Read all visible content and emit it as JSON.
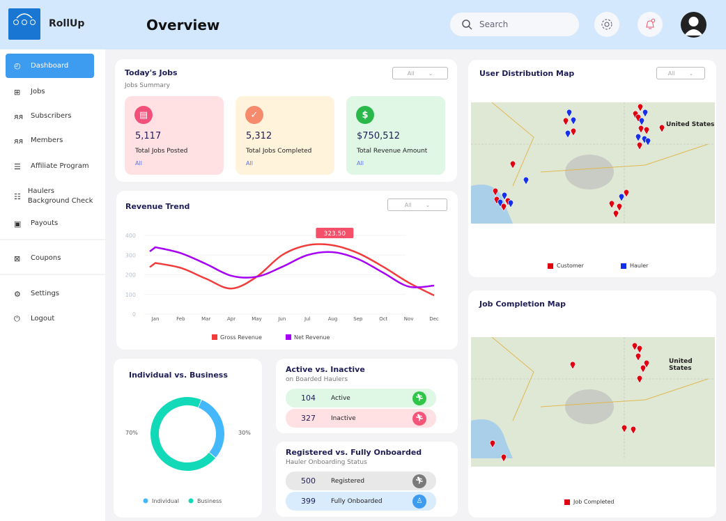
{
  "app": {
    "brand": "RollUp",
    "logo_text": "RollUp",
    "page_title": "Overview"
  },
  "header": {
    "search_placeholder": "Search",
    "icons": [
      "search-icon",
      "gear-icon",
      "bell-icon",
      "avatar-icon"
    ]
  },
  "sidebar": {
    "items": [
      {
        "label": "Dashboard",
        "icon": "gauge-icon",
        "active": true
      },
      {
        "label": "Jobs",
        "icon": "grid-icon"
      },
      {
        "label": "Subscribers",
        "icon": "users-icon"
      },
      {
        "label": "Members",
        "icon": "users-icon"
      },
      {
        "label": "Affiliate Program",
        "icon": "list-box-icon"
      },
      {
        "label": "Haulers Background Check",
        "icon": "checklist-icon"
      },
      {
        "label": "Payouts",
        "icon": "cash-icon"
      },
      {
        "label": "Coupons",
        "icon": "coupon-icon"
      },
      {
        "label": "Settings",
        "icon": "gear-icon"
      },
      {
        "label": "Logout",
        "icon": "power-icon"
      }
    ]
  },
  "todays_jobs": {
    "title": "Today's Jobs",
    "subtitle": "Jobs Summary",
    "filter": "All",
    "stats": [
      {
        "value": "5,117",
        "label": "Total Jobs Posted",
        "link": "All",
        "color": "#f0507a",
        "bg": "#ffe1e4"
      },
      {
        "value": "5,312",
        "label": "Total Jobs Completed",
        "link": "All",
        "color": "#f58a6c",
        "bg": "#fff3dc"
      },
      {
        "value": "$750,512",
        "label": "Total Revenue Amount",
        "link": "All",
        "color": "#2bb84a",
        "bg": "#dff7e4"
      }
    ]
  },
  "revenue": {
    "title": "Revenue Trend",
    "filter": "All"
  },
  "chart_data": [
    {
      "type": "line",
      "title": "Revenue Trend",
      "categories": [
        "Jan",
        "Feb",
        "Mar",
        "Apr",
        "May",
        "Jun",
        "Jul",
        "Aug",
        "Sep",
        "Oct",
        "Nov",
        "Dec"
      ],
      "yticks": [
        "0",
        "100",
        "200",
        "300",
        "400"
      ],
      "ylim": [
        0,
        400
      ],
      "grid": true,
      "legend": "bottom",
      "tooltip": "323.50",
      "series": [
        {
          "name": "Gross Revenue",
          "color": "#f23c3c",
          "values": [
            260,
            235,
            180,
            130,
            190,
            300,
            350,
            350,
            310,
            240,
            160,
            95
          ]
        },
        {
          "name": "Net Revenue",
          "color": "#a500f5",
          "values": [
            340,
            310,
            255,
            195,
            190,
            240,
            300,
            315,
            280,
            210,
            140,
            145
          ]
        }
      ]
    },
    {
      "type": "pie",
      "title": "Individual vs. Business",
      "legend": "bottom",
      "series": [
        {
          "name": "Individual",
          "value": 30,
          "label": "30%",
          "color": "#44b8fb"
        },
        {
          "name": "Business",
          "value": 70,
          "label": "70%",
          "color": "#12dab8"
        }
      ]
    }
  ],
  "active": {
    "title": "Active vs. Inactive",
    "subtitle": "on Boarded Haulers",
    "rows": [
      {
        "value": "104",
        "label": "Active",
        "bg": "#dff8e6",
        "icon_color": "#2fc548"
      },
      {
        "value": "327",
        "label": "Inactive",
        "bg": "#ffe1e4",
        "icon_color": "#f5547a"
      }
    ]
  },
  "registered": {
    "title": "Registered vs. Fully Onboarded",
    "subtitle": "Hauler Onboarding Status",
    "rows": [
      {
        "value": "500",
        "label": "Registered",
        "bg": "#e8e8e8",
        "icon_color": "#7a7a7a"
      },
      {
        "value": "399",
        "label": "Fully Onboarded",
        "bg": "#d9ecfd",
        "icon_color": "#3d9cf0"
      }
    ]
  },
  "user_map": {
    "title": "User Distribution Map",
    "filter": "All",
    "country_label": "United States",
    "legend": [
      {
        "label": "Customer",
        "color": "#e0000f"
      },
      {
        "label": "Hauler",
        "color": "#1530e8"
      }
    ]
  },
  "job_map": {
    "title": "Job Completion Map",
    "country_label": "United States",
    "legend": [
      {
        "label": "Job Completed",
        "color": "#e0000f"
      }
    ]
  }
}
